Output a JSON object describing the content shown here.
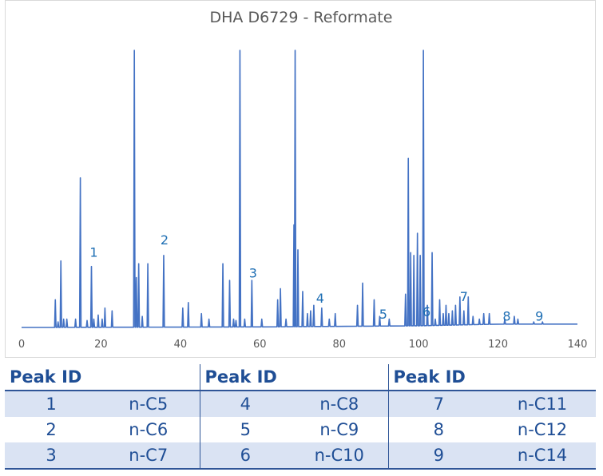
{
  "chart_data": {
    "type": "line",
    "title": "DHA D6729 - Reformate",
    "xlim": [
      0,
      140
    ],
    "ylim": [
      0,
      100
    ],
    "x_ticks": [
      0,
      20,
      40,
      60,
      80,
      100,
      120,
      140
    ],
    "grid": false,
    "color": "#4472c4",
    "baseline": [
      [
        0,
        0
      ],
      [
        60,
        0.2
      ],
      [
        100,
        0.6
      ],
      [
        120,
        1.2
      ],
      [
        140,
        1.2
      ]
    ],
    "peaks": [
      [
        8.5,
        10
      ],
      [
        9.2,
        2
      ],
      [
        9.9,
        24
      ],
      [
        10.6,
        3
      ],
      [
        11.4,
        3
      ],
      [
        13.6,
        3
      ],
      [
        14.8,
        54
      ],
      [
        16.5,
        2.5
      ],
      [
        17.6,
        22
      ],
      [
        18.2,
        3
      ],
      [
        19.3,
        4.5
      ],
      [
        20.3,
        3
      ],
      [
        21.0,
        7
      ],
      [
        22.8,
        6
      ],
      [
        28.4,
        100
      ],
      [
        28.9,
        18
      ],
      [
        29.5,
        23
      ],
      [
        30.4,
        4
      ],
      [
        31.8,
        23
      ],
      [
        35.8,
        26
      ],
      [
        40.6,
        7
      ],
      [
        42.0,
        9
      ],
      [
        45.3,
        5
      ],
      [
        47.2,
        3
      ],
      [
        50.7,
        23
      ],
      [
        52.4,
        17
      ],
      [
        53.4,
        3
      ],
      [
        54.0,
        2.5
      ],
      [
        55.0,
        100
      ],
      [
        56.2,
        3
      ],
      [
        58.0,
        17
      ],
      [
        60.5,
        3
      ],
      [
        64.5,
        10
      ],
      [
        65.2,
        14
      ],
      [
        66.6,
        3
      ],
      [
        68.6,
        37
      ],
      [
        68.9,
        100
      ],
      [
        69.6,
        28
      ],
      [
        70.8,
        13
      ],
      [
        72.0,
        5
      ],
      [
        72.8,
        6
      ],
      [
        73.6,
        8
      ],
      [
        75.6,
        7
      ],
      [
        77.5,
        3
      ],
      [
        79.0,
        5
      ],
      [
        84.6,
        8
      ],
      [
        85.9,
        16
      ],
      [
        88.8,
        10
      ],
      [
        90.2,
        4
      ],
      [
        92.6,
        3
      ],
      [
        96.7,
        12
      ],
      [
        97.4,
        61
      ],
      [
        98.0,
        27
      ],
      [
        98.8,
        26
      ],
      [
        99.7,
        34
      ],
      [
        100.4,
        26
      ],
      [
        101.2,
        100
      ],
      [
        102.2,
        8
      ],
      [
        103.4,
        27
      ],
      [
        104.2,
        3
      ],
      [
        105.3,
        10
      ],
      [
        106.2,
        5
      ],
      [
        106.9,
        8
      ],
      [
        107.6,
        5
      ],
      [
        108.5,
        6
      ],
      [
        109.3,
        8
      ],
      [
        110.4,
        11
      ],
      [
        111.4,
        6
      ],
      [
        112.5,
        11
      ],
      [
        113.7,
        4
      ],
      [
        115.3,
        3
      ],
      [
        116.4,
        5
      ],
      [
        117.8,
        5
      ],
      [
        121.7,
        3
      ],
      [
        124.1,
        4
      ],
      [
        125.0,
        3
      ],
      [
        129.0,
        2
      ],
      [
        131.2,
        2
      ]
    ],
    "annotations": [
      {
        "text": "1",
        "x": 18.2,
        "y": 25.5
      },
      {
        "text": "2",
        "x": 36.0,
        "y": 30.0
      },
      {
        "text": "3",
        "x": 58.3,
        "y": 18.0
      },
      {
        "text": "4",
        "x": 75.2,
        "y": 9.0
      },
      {
        "text": "5",
        "x": 91.1,
        "y": 3.2
      },
      {
        "text": "6",
        "x": 102.0,
        "y": 4.0
      },
      {
        "text": "7",
        "x": 111.4,
        "y": 9.5
      },
      {
        "text": "8",
        "x": 122.2,
        "y": 2.4
      },
      {
        "text": "9",
        "x": 130.4,
        "y": 2.4
      }
    ]
  },
  "peak_table": {
    "header": [
      "Peak ID",
      "Peak ID",
      "Peak ID"
    ],
    "rows": [
      [
        "1",
        "n-C5",
        "4",
        "n-C8",
        "7",
        "n-C11"
      ],
      [
        "2",
        "n-C6",
        "5",
        "n-C9",
        "8",
        "n-C12"
      ],
      [
        "3",
        "n-C7",
        "6",
        "n-C10",
        "9",
        "n-C14"
      ]
    ]
  }
}
